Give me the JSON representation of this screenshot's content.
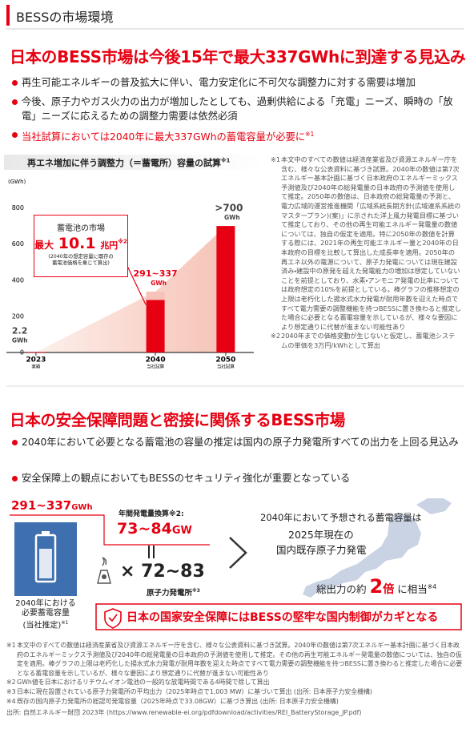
{
  "header": {
    "title": "BESSの市場環境"
  },
  "section1": {
    "title": "日本のBESS市場は今後15年で最大337GWhに到達する見込み",
    "bullets": [
      {
        "text": "再生可能エネルギーの普及拡大に伴い、電力安定化に不可欠な調整力に対する需要は増加"
      },
      {
        "text": "今後、原子力やガス火力の出力が増加したとしても、過剰供給による「充電」ニーズ、瞬時の「放電」ニーズに応えるための調整力需要は依然必須"
      },
      {
        "text": "当社試算においては2040年に最大337GWhの蓄電容量が必要に",
        "note": "※1"
      }
    ]
  },
  "chart_data": {
    "type": "bar",
    "title": "再エネ増加に伴う調整力（＝蓄電所）容量の試算",
    "title_note": "※1",
    "y_label": "(GWh)",
    "x": [
      2023,
      2040,
      2050
    ],
    "xlim": [
      2018,
      2054
    ],
    "category_notes": [
      "実績",
      "当社試算",
      "当社試算"
    ],
    "values": [
      2.2,
      291,
      700
    ],
    "values_high": [
      2.2,
      337,
      700
    ],
    "value_labels": [
      "2.2",
      "291~337",
      ">700"
    ],
    "value_unit": "GWh",
    "color": "#e60012",
    "range_color": "#f6c3b8",
    "area_color": "#f9d3c9",
    "ylim": [
      0,
      900
    ],
    "yticks": [
      0,
      200,
      400,
      600,
      800
    ],
    "grid": false,
    "callout": {
      "title": "蓄電池の市場",
      "prefix": "最大",
      "value": "10.1",
      "unit": "兆円",
      "note": "※2",
      "caption": [
        "(2040年の想定容量に既存の",
        "蓄電池価格を乗じて算出)"
      ]
    }
  },
  "chart_notes": [
    {
      "mark": "※1",
      "text": "本文中のすべての数値は経済産業省及び資源エネルギー庁を含む、様々な公表資料に基づき試算。2040年の数値は第7次エネルギー基本計画に基づく日本政府のエネルギーミックス予測値及び2040年の総発電量の日本政府の予測値を使用して推定。2050年の数値は、日本政府の総発電量の予測と、電力広域的運営推進機関「広域系統長期方針(広域連系系統のマスタープラン)(案)」に示された洋上風力発電目標に基づいて推定しており、その他の再生可能エネルギー発電量の数値については、独自の仮定を適用。特に2050年の数値を計算する際には、2021年の再生可能エネルギー量と2040年の日本政府の目標を比較して算出した成長率を適用。2050年の再エネ以外の電源について、原子力発電については現在建設済み・建設中の原発を超えた発電能力の増加は想定していないことを前提としており、水素・アンモニア発電の比率については政府想定の10%を前提としている。棒グラフの推移想定の上限は老朽化した揚水式水力発電が耐用年数を迎えた時点ですべて電力需要の調整機能を持つBESSに置き換わると推定した場合に必要となる蓄電容量を示しているが、様々な要因により想定通りに代替が進まない可能性あり"
    },
    {
      "mark": "※2",
      "text": "2040年までの価格変動が生じないと仮定し、蓄電池システムの単価を3万円/kWhとして算出"
    }
  ],
  "section2": {
    "title": "日本の安全保障問題と密接に関係するBESS市場",
    "bullets": [
      {
        "text": "2040年において必要となる蓄電池の容量の推定は国内の原子力発電所すべての出力を上回る見込み"
      },
      {
        "text": "安全保障上の観点においてもBESSのセキュリティ強化が重要となっている"
      }
    ]
  },
  "comparison": {
    "capacity": {
      "value": "291~337",
      "unit": "GWh",
      "caption": [
        "2040年における",
        "必要蓄電容量",
        "(当社推定)"
      ],
      "note": "※1"
    },
    "annual": {
      "label": "年間発電量換算",
      "note": "※2:",
      "value": "73~84",
      "unit": "GW"
    },
    "plants": {
      "symbol": "×",
      "value": "72~83",
      "label": "原子力発電所",
      "note": "※3"
    },
    "statement": {
      "lines": [
        "2040年において予想される蓄電容量は",
        "2025年現在の",
        "国内既存原子力発電"
      ],
      "prefix": "総出力の約",
      "value": "2",
      "unit": "倍",
      "suffix": "に相当",
      "note": "※4"
    },
    "banner": "日本の国家安全保障にはBESSの堅牢な国内制御がカギとなる"
  },
  "footnotes": [
    {
      "mark": "※1",
      "text": "本文中のすべての数値は経済産業省及び資源エネルギー庁を含む、様々な公表資料に基づき試算。2040年の数値は第7次エネルギー基本計画に基づく日本政府のエネルギーミックス予測値及び2040年の総発電量の日本政府の予測値を使用して推定。その他の再生可能エネルギー発電量の数値については、独自の仮定を適用。棒グラフの上限は老朽化した揚水式水力発電が耐用年数を迎えた時点ですべて電力需要の調整機能を持つBESSに置き換わると推定した場合に必要となる蓄電容量を示しているが、様々な要因により想定通りに代替が進まない可能性あり"
    },
    {
      "mark": "※2",
      "text": "GWh値を日本におけるリチウムイオン電池の一般的な放電時間である4時間で除して算出"
    },
    {
      "mark": "※3",
      "text": "日本に現在設置されている原子力発電所の平均出力（2025年時点で1,003 MW）に基づいて算出 (出所: 日本原子力安全機構)"
    },
    {
      "mark": "※4",
      "text": "既存の国内原子力発電所の総認可発電容量（2025年時点で33.08GW）に基づき算出 (出所: 日本原子力安全機構)"
    }
  ],
  "source": {
    "label": "出所:",
    "text": "自然エネルギー財団 2023年 (https://www.renewable-ei.org/pdfdownload/activities/REI_BatteryStorage_JP.pdf)"
  }
}
